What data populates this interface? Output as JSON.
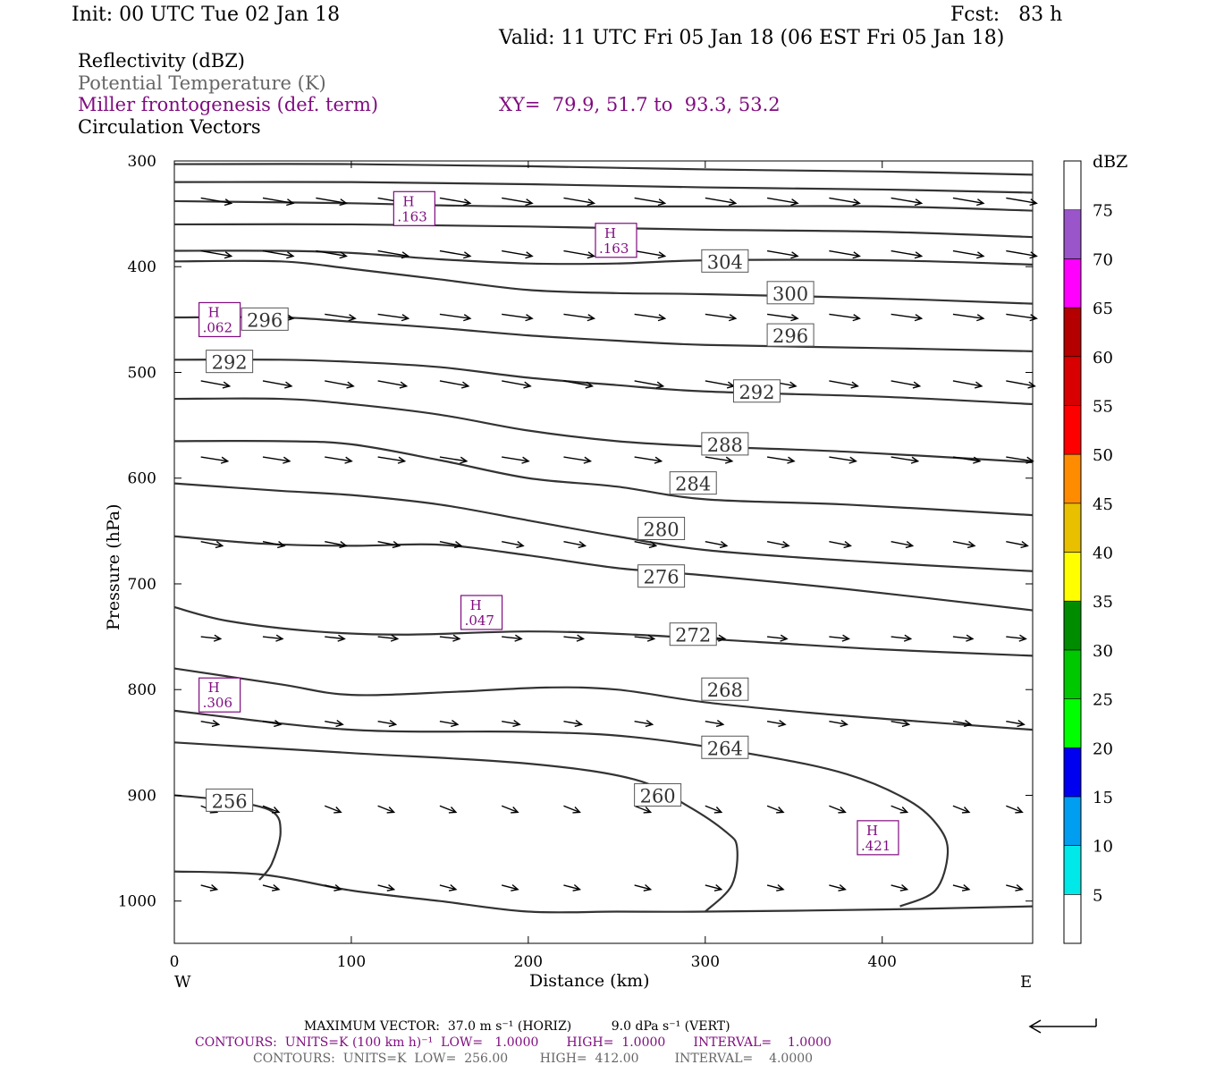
{
  "header": {
    "init": "Init: 00 UTC Tue 02 Jan 18",
    "fcst": "Fcst:   83 h",
    "valid": "Valid: 11 UTC Fri 05 Jan 18 (06 EST Fri 05 Jan 18)",
    "line1": "Reflectivity (dBZ)",
    "line2": "Potential Temperature (K)",
    "line3": "Miller frontogenesis (def. term)",
    "line4": "Circulation Vectors",
    "xy": "XY=  79.9, 51.7 to  93.3, 53.2"
  },
  "footer": {
    "max_vector": "MAXIMUM VECTOR:  37.0 m s⁻¹ (HORIZ)          9.0 dPa s⁻¹ (VERT)",
    "contours1": "CONTOURS:  UNITS=K (100 km h)⁻¹  LOW=   1.0000       HIGH=  1.0000       INTERVAL=    1.0000",
    "contours2": "CONTOURS:  UNITS=K  LOW=  256.00        HIGH=  412.00         INTERVAL=    4.0000"
  },
  "colors": {
    "theta": "#333333",
    "fronto": "#7f0b7f",
    "vector": "#000000"
  },
  "chart_data": {
    "type": "cross-section",
    "xlabel": "Distance (km)",
    "ylabel": "Pressure (hPa)",
    "xlim": [
      0,
      485
    ],
    "ylim": [
      1040,
      300
    ],
    "x_ticks": [
      0,
      100,
      200,
      300,
      400
    ],
    "y_ticks": [
      300,
      400,
      500,
      600,
      700,
      800,
      900,
      1000
    ],
    "x_end_labels": {
      "left": "W",
      "right": "E"
    },
    "colorbar": {
      "unit": "dBZ",
      "levels": [
        5,
        10,
        15,
        20,
        25,
        30,
        35,
        40,
        45,
        50,
        55,
        60,
        65,
        70,
        75
      ],
      "colors": [
        "#ffffff",
        "#00e8e8",
        "#009ef0",
        "#0000f0",
        "#00ff00",
        "#00c800",
        "#008c00",
        "#ffff00",
        "#e8c000",
        "#ff8c00",
        "#ff0000",
        "#d80000",
        "#b40000",
        "#ff00ff",
        "#9955c9",
        "#ffffff"
      ]
    },
    "theta_contours": [
      {
        "label": "256",
        "pts": [
          [
            0,
            900
          ],
          [
            30,
            905
          ],
          [
            55,
            915
          ],
          [
            60,
            935
          ],
          [
            55,
            965
          ],
          [
            48,
            980
          ]
        ]
      },
      {
        "label": "260",
        "pts": [
          [
            0,
            850
          ],
          [
            100,
            860
          ],
          [
            200,
            870
          ],
          [
            260,
            885
          ],
          [
            290,
            910
          ],
          [
            312,
            935
          ],
          [
            318,
            950
          ],
          [
            315,
            985
          ],
          [
            300,
            1010
          ]
        ]
      },
      {
        "label": "264",
        "pts": [
          [
            0,
            820
          ],
          [
            100,
            838
          ],
          [
            200,
            840
          ],
          [
            260,
            845
          ],
          [
            330,
            862
          ],
          [
            380,
            880
          ],
          [
            415,
            905
          ],
          [
            432,
            930
          ],
          [
            437,
            955
          ],
          [
            430,
            990
          ],
          [
            410,
            1005
          ]
        ]
      },
      {
        "label": "268",
        "pts": [
          [
            0,
            780
          ],
          [
            60,
            795
          ],
          [
            100,
            805
          ],
          [
            160,
            802
          ],
          [
            210,
            798
          ],
          [
            250,
            800
          ],
          [
            300,
            812
          ],
          [
            360,
            822
          ],
          [
            420,
            830
          ],
          [
            485,
            838
          ]
        ]
      },
      {
        "label": "272",
        "pts": [
          [
            0,
            722
          ],
          [
            30,
            735
          ],
          [
            80,
            745
          ],
          [
            130,
            748
          ],
          [
            200,
            745
          ],
          [
            260,
            748
          ],
          [
            330,
            755
          ],
          [
            400,
            762
          ],
          [
            485,
            768
          ]
        ]
      },
      {
        "label": "276",
        "pts": [
          [
            0,
            655
          ],
          [
            50,
            662
          ],
          [
            100,
            664
          ],
          [
            150,
            663
          ],
          [
            200,
            673
          ],
          [
            250,
            685
          ],
          [
            300,
            692
          ],
          [
            380,
            705
          ],
          [
            485,
            725
          ]
        ]
      },
      {
        "label": "280",
        "pts": [
          [
            0,
            605
          ],
          [
            60,
            612
          ],
          [
            100,
            616
          ],
          [
            150,
            625
          ],
          [
            200,
            640
          ],
          [
            250,
            655
          ],
          [
            300,
            668
          ],
          [
            380,
            678
          ],
          [
            485,
            688
          ]
        ]
      },
      {
        "label": "284",
        "pts": [
          [
            0,
            565
          ],
          [
            60,
            565
          ],
          [
            100,
            568
          ],
          [
            150,
            583
          ],
          [
            200,
            600
          ],
          [
            250,
            608
          ],
          [
            300,
            620
          ],
          [
            380,
            625
          ],
          [
            485,
            635
          ]
        ]
      },
      {
        "label": "288",
        "pts": [
          [
            0,
            525
          ],
          [
            60,
            525
          ],
          [
            100,
            530
          ],
          [
            150,
            540
          ],
          [
            200,
            555
          ],
          [
            250,
            565
          ],
          [
            300,
            570
          ],
          [
            380,
            575
          ],
          [
            485,
            585
          ]
        ]
      },
      {
        "label": "292",
        "pts": [
          [
            0,
            488
          ],
          [
            60,
            488
          ],
          [
            100,
            490
          ],
          [
            150,
            495
          ],
          [
            200,
            505
          ],
          [
            250,
            512
          ],
          [
            300,
            518
          ],
          [
            400,
            523
          ],
          [
            485,
            530
          ]
        ]
      },
      {
        "label": "296",
        "pts": [
          [
            0,
            448
          ],
          [
            60,
            448
          ],
          [
            100,
            452
          ],
          [
            150,
            458
          ],
          [
            200,
            465
          ],
          [
            250,
            470
          ],
          [
            300,
            474
          ],
          [
            400,
            477
          ],
          [
            485,
            480
          ]
        ]
      },
      {
        "label": "300",
        "pts": [
          [
            0,
            395
          ],
          [
            60,
            395
          ],
          [
            100,
            402
          ],
          [
            150,
            412
          ],
          [
            200,
            422
          ],
          [
            250,
            425
          ],
          [
            300,
            426
          ],
          [
            400,
            430
          ],
          [
            485,
            435
          ]
        ]
      },
      {
        "label": "304",
        "pts": [
          [
            0,
            385
          ],
          [
            60,
            385
          ],
          [
            100,
            387
          ],
          [
            150,
            393
          ],
          [
            200,
            397
          ],
          [
            250,
            397
          ],
          [
            300,
            394
          ],
          [
            400,
            394
          ],
          [
            485,
            398
          ]
        ]
      },
      {
        "label": "",
        "pts": [
          [
            0,
            360
          ],
          [
            100,
            360
          ],
          [
            200,
            362
          ],
          [
            300,
            365
          ],
          [
            400,
            367
          ],
          [
            485,
            372
          ]
        ]
      },
      {
        "label": "",
        "pts": [
          [
            0,
            338
          ],
          [
            100,
            340
          ],
          [
            150,
            342
          ],
          [
            200,
            343
          ],
          [
            300,
            343
          ],
          [
            400,
            343
          ],
          [
            485,
            347
          ]
        ]
      },
      {
        "label": "",
        "pts": [
          [
            0,
            320
          ],
          [
            100,
            320
          ],
          [
            200,
            322
          ],
          [
            300,
            325
          ],
          [
            400,
            327
          ],
          [
            485,
            330
          ]
        ]
      },
      {
        "label": "",
        "pts": [
          [
            0,
            303
          ],
          [
            100,
            303
          ],
          [
            200,
            305
          ],
          [
            300,
            308
          ],
          [
            400,
            310
          ],
          [
            485,
            313
          ]
        ]
      },
      {
        "label": "",
        "pts": [
          [
            0,
            972
          ],
          [
            50,
            975
          ],
          [
            100,
            990
          ],
          [
            150,
            1000
          ],
          [
            200,
            1010
          ],
          [
            250,
            1010
          ],
          [
            300,
            1010
          ],
          [
            400,
            1008
          ],
          [
            485,
            1005
          ]
        ]
      }
    ],
    "theta_labels": [
      {
        "text": "256",
        "x": 18,
        "p": 905
      },
      {
        "text": "260",
        "x": 260,
        "p": 900
      },
      {
        "text": "264",
        "x": 298,
        "p": 855
      },
      {
        "text": "268",
        "x": 298,
        "p": 800
      },
      {
        "text": "272",
        "x": 280,
        "p": 748
      },
      {
        "text": "276",
        "x": 262,
        "p": 693
      },
      {
        "text": "280",
        "x": 262,
        "p": 648
      },
      {
        "text": "284",
        "x": 280,
        "p": 605
      },
      {
        "text": "288",
        "x": 298,
        "p": 568
      },
      {
        "text": "292",
        "x": 18,
        "p": 490
      },
      {
        "text": "292",
        "x": 316,
        "p": 518
      },
      {
        "text": "296",
        "x": 335,
        "p": 465
      },
      {
        "text": "296",
        "x": 38,
        "p": 450
      },
      {
        "text": "300",
        "x": 335,
        "p": 425
      },
      {
        "text": "304",
        "x": 298,
        "p": 395
      }
    ],
    "fronto_maxima": [
      {
        "text": "H",
        "value": ".163",
        "x": 128,
        "p": 340
      },
      {
        "text": "H",
        "value": ".163",
        "x": 242,
        "p": 370
      },
      {
        "text": "H",
        "value": ".062",
        "x": 18,
        "p": 445
      },
      {
        "text": "H",
        "value": ".047",
        "x": 166,
        "p": 722
      },
      {
        "text": "H",
        "value": ".306",
        "x": 18,
        "p": 800
      },
      {
        "text": "H",
        "value": ".421",
        "x": 390,
        "p": 935
      }
    ],
    "vector_rows": [
      {
        "p": 335,
        "dp": 5,
        "len": 34,
        "xs": [
          15,
          50,
          80,
          115,
          150,
          185,
          220,
          260,
          300,
          335,
          370,
          405,
          440,
          470
        ]
      },
      {
        "p": 385,
        "dp": 5,
        "len": 34,
        "xs": [
          15,
          50,
          80,
          115,
          150,
          185,
          220,
          260,
          300,
          335,
          370,
          405,
          440,
          470
        ]
      },
      {
        "p": 445,
        "dp": 4,
        "len": 34,
        "xs": [
          15,
          50,
          85,
          115,
          150,
          185,
          220,
          260,
          300,
          335,
          370,
          405,
          440,
          470
        ]
      },
      {
        "p": 508,
        "dp": 5,
        "len": 32,
        "xs": [
          15,
          50,
          85,
          115,
          150,
          185,
          220,
          260,
          300,
          335,
          370,
          405,
          440,
          470
        ]
      },
      {
        "p": 580,
        "dp": 4,
        "len": 30,
        "xs": [
          15,
          50,
          85,
          115,
          150,
          185,
          220,
          260,
          300,
          335,
          370,
          405,
          440,
          470
        ]
      },
      {
        "p": 660,
        "dp": 4,
        "len": 24,
        "xs": [
          15,
          50,
          85,
          115,
          150,
          185,
          220,
          260,
          300,
          335,
          370,
          405,
          440,
          470
        ]
      },
      {
        "p": 750,
        "dp": 2,
        "len": 22,
        "xs": [
          15,
          50,
          85,
          115,
          150,
          185,
          220,
          260,
          300,
          335,
          370,
          405,
          440,
          470
        ]
      },
      {
        "p": 830,
        "dp": 3,
        "len": 20,
        "xs": [
          15,
          50,
          85,
          115,
          150,
          185,
          220,
          260,
          300,
          335,
          370,
          405,
          440,
          470
        ]
      },
      {
        "p": 910,
        "dp": 6,
        "len": 18,
        "xs": [
          15,
          50,
          85,
          115,
          150,
          185,
          220,
          260,
          300,
          335,
          370,
          405,
          440,
          470
        ]
      },
      {
        "p": 985,
        "dp": 4,
        "len": 18,
        "xs": [
          15,
          50,
          85,
          115,
          150,
          185,
          220,
          260,
          300,
          335,
          370,
          405,
          440,
          470
        ]
      }
    ]
  }
}
